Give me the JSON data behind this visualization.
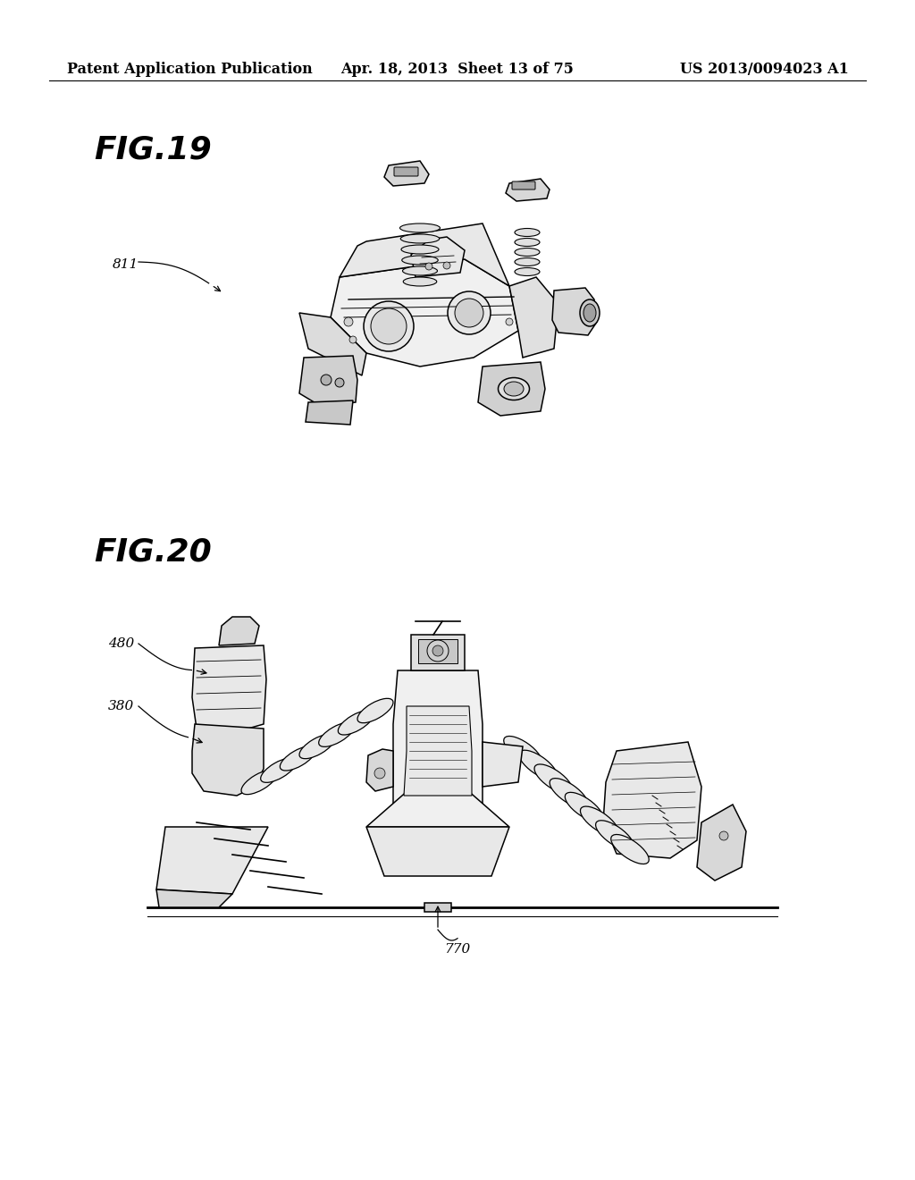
{
  "background_color": "#ffffff",
  "header_left": "Patent Application Publication",
  "header_center": "Apr. 18, 2013  Sheet 13 of 75",
  "header_right": "US 2013/0094023 A1",
  "header_fontsize": 11.5,
  "fig19_label": "FIG.19",
  "fig19_label_fontsize": 26,
  "fig20_label": "FIG.20",
  "fig20_label_fontsize": 26,
  "ref_fontsize": 11
}
